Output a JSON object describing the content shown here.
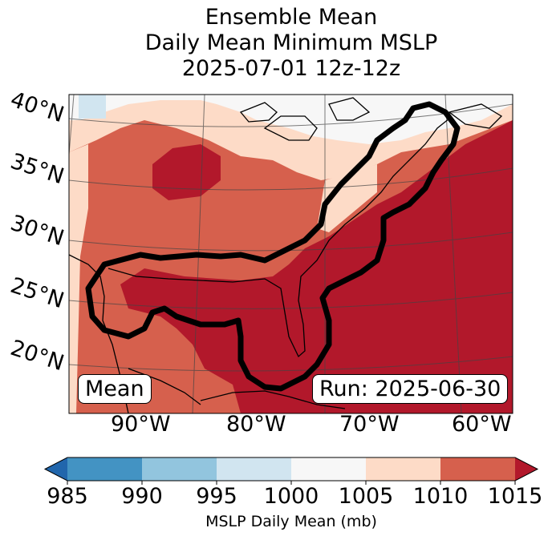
{
  "title": {
    "line1": "Ensemble Mean",
    "line2": "Daily Mean Minimum MSLP",
    "line3": "2025-07-01 12z-12z"
  },
  "map": {
    "lat_labels": [
      "40°N",
      "35°N",
      "30°N",
      "25°N",
      "20°N"
    ],
    "lon_labels": [
      "90°W",
      "80°W",
      "70°W",
      "60°W"
    ],
    "left_box": "Mean",
    "right_box": "Run: 2025-06-30"
  },
  "colorbar": {
    "ticks": [
      "985",
      "990",
      "995",
      "1000",
      "1005",
      "1010",
      "1015"
    ],
    "label": "MSLP Daily Mean (mb)",
    "colors": [
      "#2166ac",
      "#4393c3",
      "#92c5de",
      "#d1e5f0",
      "#f7f7f7",
      "#fddbc7",
      "#d6604d",
      "#b2182b"
    ]
  }
}
